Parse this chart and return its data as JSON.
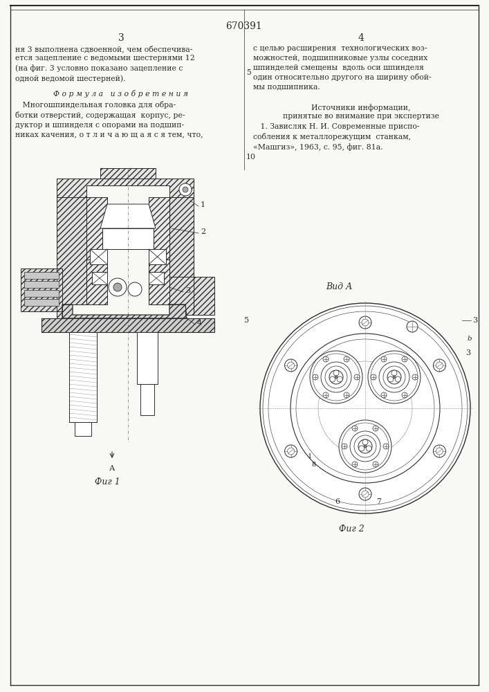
{
  "page_width": 7.07,
  "page_height": 10.0,
  "bg_color": "#f8f8f5",
  "line_color": "#2a2a2a",
  "title_number": "670391",
  "col_left_num": "3",
  "col_right_num": "4",
  "fig1_label": "Фиг 1",
  "fig2_label": "Фиг 2",
  "vid_a_label": "Вид А"
}
